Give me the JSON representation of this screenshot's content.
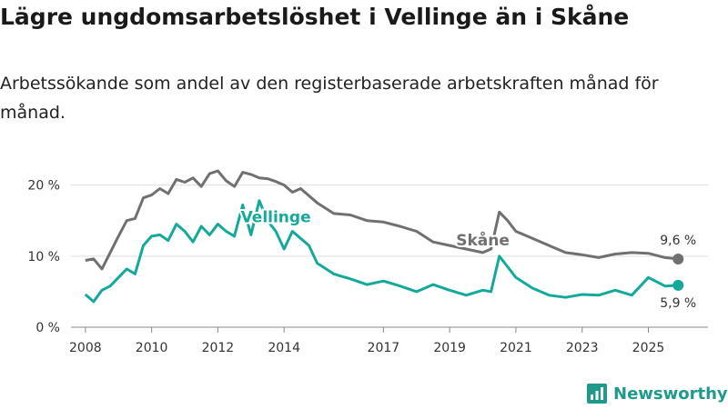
{
  "title": "Lägre ungdomsarbetslöshet i Vellinge än i Skåne",
  "subtitle": "Arbetssökande som andel av den registerbaserade arbetskraften månad för månad.",
  "brand": "Newsworthy",
  "colors": {
    "skane": "#707070",
    "vellinge": "#14a99b",
    "grid": "#dddddd",
    "text": "#333333"
  },
  "chart_data": {
    "type": "line",
    "x_ticks": [
      "2008",
      "2010",
      "2012",
      "2014",
      "2017",
      "2019",
      "2021",
      "2023",
      "2025"
    ],
    "x_tick_values": [
      2008,
      2010,
      2012,
      2014,
      2017,
      2019,
      2021,
      2023,
      2025
    ],
    "y_ticks": [
      "0 %",
      "10 %",
      "20 %"
    ],
    "y_tick_values": [
      0,
      10,
      20
    ],
    "xlim": [
      2007.4,
      2026.8
    ],
    "ylim": [
      0,
      22
    ],
    "series": [
      {
        "name": "Skåne",
        "label": "Skåne",
        "end_label": "9,6 %",
        "x": [
          2008.0,
          2008.25,
          2008.5,
          2008.75,
          2009.0,
          2009.25,
          2009.5,
          2009.75,
          2010.0,
          2010.25,
          2010.5,
          2010.75,
          2011.0,
          2011.25,
          2011.5,
          2011.75,
          2012.0,
          2012.25,
          2012.5,
          2012.75,
          2013.0,
          2013.25,
          2013.5,
          2013.75,
          2014.0,
          2014.25,
          2014.5,
          2014.75,
          2015.0,
          2015.5,
          2016.0,
          2016.5,
          2017.0,
          2017.5,
          2018.0,
          2018.5,
          2019.0,
          2019.5,
          2020.0,
          2020.25,
          2020.5,
          2020.75,
          2021.0,
          2021.5,
          2022.0,
          2022.5,
          2023.0,
          2023.5,
          2024.0,
          2024.5,
          2025.0,
          2025.5,
          2025.9
        ],
        "y": [
          9.4,
          9.6,
          8.2,
          10.5,
          12.8,
          15.0,
          15.3,
          18.2,
          18.6,
          19.5,
          18.8,
          20.8,
          20.4,
          21.0,
          19.8,
          21.6,
          22.0,
          20.6,
          19.8,
          21.8,
          21.5,
          21.0,
          20.9,
          20.5,
          20.0,
          19.0,
          19.5,
          18.5,
          17.5,
          16.0,
          15.8,
          15.0,
          14.8,
          14.2,
          13.5,
          12.0,
          11.5,
          11.0,
          10.5,
          11.0,
          16.2,
          15.0,
          13.5,
          12.5,
          11.5,
          10.5,
          10.2,
          9.8,
          10.3,
          10.5,
          10.4,
          9.8,
          9.6
        ]
      },
      {
        "name": "Vellinge",
        "label": "Vellinge",
        "end_label": "5,9 %",
        "x": [
          2008.0,
          2008.25,
          2008.5,
          2008.75,
          2009.0,
          2009.25,
          2009.5,
          2009.75,
          2010.0,
          2010.25,
          2010.5,
          2010.75,
          2011.0,
          2011.25,
          2011.5,
          2011.75,
          2012.0,
          2012.25,
          2012.5,
          2012.75,
          2013.0,
          2013.25,
          2013.5,
          2013.75,
          2014.0,
          2014.25,
          2014.5,
          2014.75,
          2015.0,
          2015.5,
          2016.0,
          2016.5,
          2017.0,
          2017.5,
          2018.0,
          2018.5,
          2019.0,
          2019.5,
          2020.0,
          2020.25,
          2020.5,
          2020.75,
          2021.0,
          2021.5,
          2022.0,
          2022.5,
          2023.0,
          2023.5,
          2024.0,
          2024.5,
          2025.0,
          2025.5,
          2025.9
        ],
        "y": [
          4.6,
          3.6,
          5.2,
          5.8,
          7.0,
          8.2,
          7.5,
          11.5,
          12.8,
          13.0,
          12.2,
          14.5,
          13.5,
          12.0,
          14.2,
          13.0,
          14.5,
          13.5,
          12.8,
          17.2,
          13.0,
          17.8,
          15.0,
          13.5,
          11.0,
          13.5,
          12.5,
          11.5,
          9.0,
          7.5,
          6.8,
          6.0,
          6.5,
          5.8,
          5.0,
          6.0,
          5.2,
          4.5,
          5.2,
          5.0,
          10.0,
          8.5,
          7.0,
          5.5,
          4.5,
          4.2,
          4.6,
          4.5,
          5.2,
          4.5,
          7.0,
          5.8,
          5.9
        ]
      }
    ]
  }
}
